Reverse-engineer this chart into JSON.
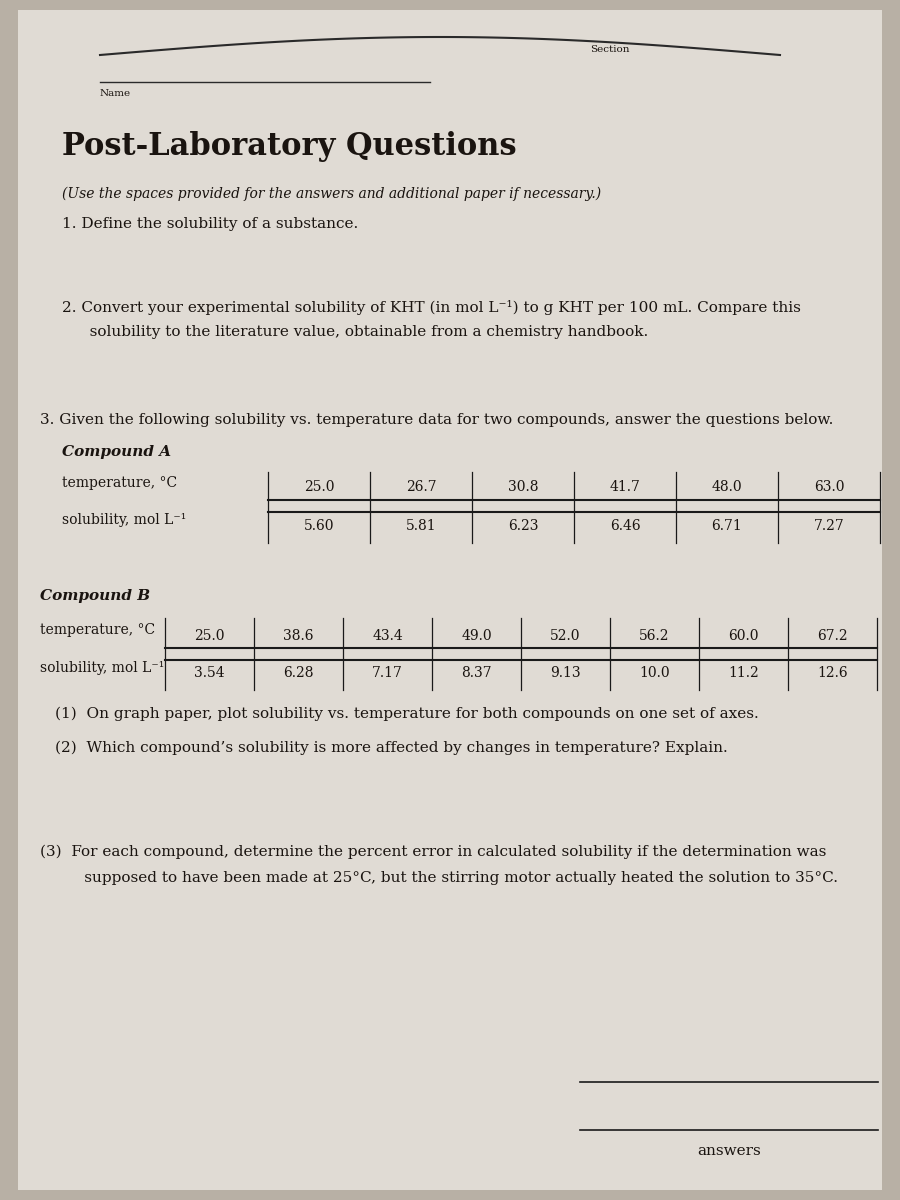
{
  "bg_color": "#b8b0a5",
  "paper_color": "#e0dbd4",
  "text_color": "#1a1410",
  "section_label": "Section",
  "name_label": "Name",
  "title": "Post-Laboratory Questions",
  "subtitle": "(Use the spaces provided for the answers and additional paper if necessary.)",
  "q1": "1. Define the solubility of a substance.",
  "q2_line1": "2. Convert your experimental solubility of KHT (in mol L⁻¹) to g KHT per 100 mL. Compare this",
  "q2_line2": "   solubility to the literature value, obtainable from a chemistry handbook.",
  "q3_intro": "3. Given the following solubility vs. temperature data for two compounds, answer the questions below.",
  "compound_a_label": "Compound A",
  "compound_a_row1_label": "temperature, °C",
  "compound_a_row1_values": [
    "25.0",
    "26.7",
    "30.8",
    "41.7",
    "48.0",
    "63.0"
  ],
  "compound_a_row2_label": "solubility, mol L⁻¹",
  "compound_a_row2_values": [
    "5.60",
    "5.81",
    "6.23",
    "6.46",
    "6.71",
    "7.27"
  ],
  "compound_b_label": "Compound B",
  "compound_b_row1_label": "temperature, °C",
  "compound_b_row1_values": [
    "25.0",
    "38.6",
    "43.4",
    "49.0",
    "52.0",
    "56.2",
    "60.0",
    "67.2"
  ],
  "compound_b_row2_label": "solubility, mol L⁻¹",
  "compound_b_row2_values": [
    "3.54",
    "6.28",
    "7.17",
    "8.37",
    "9.13",
    "10.0",
    "11.2",
    "12.6"
  ],
  "q3_1": "(1)  On graph paper, plot solubility vs. temperature for both compounds on one set of axes.",
  "q3_2": "(2)  Which compound’s solubility is more affected by changes in temperature? Explain.",
  "q3_3_line1": "(3)  For each compound, determine the percent error in calculated solubility if the determination was",
  "q3_3_line2": "      supposed to have been made at 25°C, but the stirring motor actually heated the solution to 35°C.",
  "answers_label": "answers",
  "fig_width": 9.0,
  "fig_height": 12.0,
  "dpi": 100
}
